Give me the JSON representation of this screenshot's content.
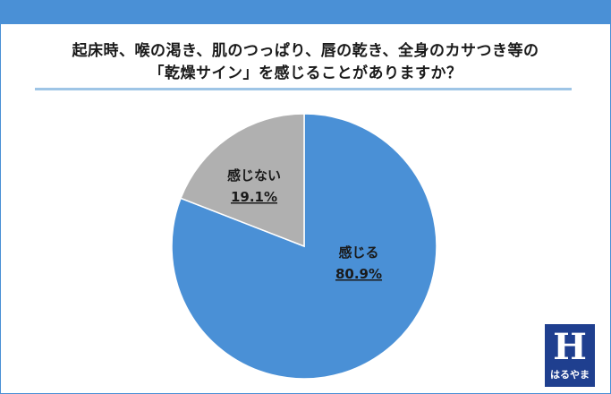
{
  "chart_data": {
    "type": "pie",
    "title_lines": [
      "起床時、喉の渇き、肌のつっぱり、唇の乾き、全身のカサつき等の",
      "「乾燥サイン」を感じることがありますか？"
    ],
    "slices": [
      {
        "label": "感じる",
        "value": 80.9,
        "value_text": "80.9%",
        "color": "#4a90d6"
      },
      {
        "label": "感じない",
        "value": 19.1,
        "value_text": "19.1%",
        "color": "#b0b0b0"
      }
    ],
    "legend": "none"
  },
  "logo": {
    "text": "はるやま",
    "mark": "H",
    "color": "#1f3f8f"
  },
  "colors": {
    "frame": "#4a90d6",
    "rule": "#9ec5e6"
  }
}
